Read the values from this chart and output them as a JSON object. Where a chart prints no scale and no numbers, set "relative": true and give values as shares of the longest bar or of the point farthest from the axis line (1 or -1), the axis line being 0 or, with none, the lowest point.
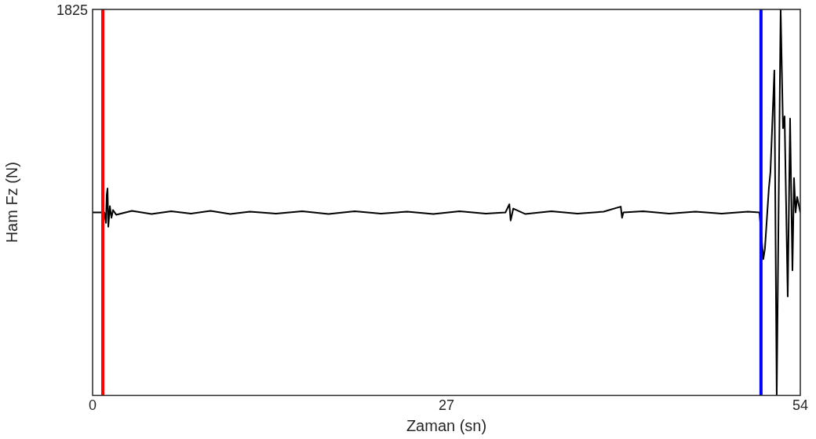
{
  "chart_data": {
    "type": "line",
    "relative": true,
    "xlabel": "Zaman (sn)",
    "ylabel": "Ham Fz (N)",
    "xlim": [
      0,
      54
    ],
    "xticks": [
      0,
      27,
      54
    ],
    "grid": false,
    "legend": false,
    "marker": "none",
    "line_style": "solid",
    "annotations": [
      "1825"
    ],
    "ref_lines": [
      {
        "axis": "x",
        "value": 0.78,
        "color": "#ff0000"
      },
      {
        "axis": "x",
        "value": 51.0,
        "color": "#0000ff"
      }
    ],
    "series": [
      {
        "color": "#000000",
        "x": [
          0,
          0.6,
          0.9,
          1.02,
          1.08,
          1.14,
          1.2,
          1.32,
          1.44,
          1.56,
          1.8,
          3,
          4.5,
          6,
          7.5,
          9,
          10.5,
          12,
          14,
          16,
          18,
          20,
          22,
          24,
          26,
          28,
          30,
          31.5,
          31.8,
          31.9,
          32.1,
          33,
          35,
          37,
          39,
          40.3,
          40.4,
          40.5,
          42,
          44,
          46,
          48,
          50,
          50.88,
          51.18,
          51.3,
          51.6,
          51.72,
          52.02,
          52.2,
          52.5,
          52.68,
          52.8,
          53.04,
          53.22,
          53.4,
          53.52,
          53.64,
          53.76,
          54
        ],
        "values": [
          0.474,
          0.474,
          0.474,
          0.447,
          0.52,
          0.536,
          0.437,
          0.49,
          0.46,
          0.48,
          0.468,
          0.478,
          0.47,
          0.477,
          0.471,
          0.478,
          0.47,
          0.476,
          0.471,
          0.477,
          0.47,
          0.477,
          0.471,
          0.476,
          0.47,
          0.477,
          0.471,
          0.474,
          0.495,
          0.453,
          0.484,
          0.47,
          0.477,
          0.471,
          0.476,
          0.489,
          0.46,
          0.474,
          0.477,
          0.471,
          0.476,
          0.471,
          0.476,
          0.474,
          0.353,
          0.38,
          0.536,
          0.578,
          0.842,
          0.0,
          1.0,
          0.692,
          0.723,
          0.256,
          0.717,
          0.324,
          0.563,
          0.474,
          0.514,
          0.474
        ]
      }
    ]
  }
}
